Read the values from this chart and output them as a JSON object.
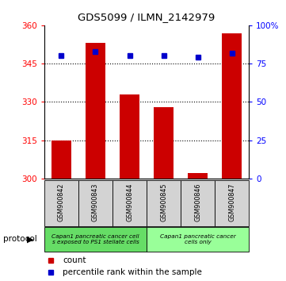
{
  "title": "GDS5099 / ILMN_2142979",
  "samples": [
    "GSM900842",
    "GSM900843",
    "GSM900844",
    "GSM900845",
    "GSM900846",
    "GSM900847"
  ],
  "bar_values": [
    315.0,
    353.0,
    333.0,
    328.0,
    302.0,
    357.0
  ],
  "bar_base": 300,
  "percentile_ranks": [
    80,
    83,
    80,
    80,
    79,
    82
  ],
  "ylim_left": [
    300,
    360
  ],
  "ylim_right": [
    0,
    100
  ],
  "yticks_left": [
    300,
    315,
    330,
    345,
    360
  ],
  "yticks_right": [
    0,
    25,
    50,
    75,
    100
  ],
  "bar_color": "#cc0000",
  "dot_color": "#0000cc",
  "protocol_groups": [
    {
      "label": "Capan1 pancreatic cancer cell\ns exposed to PS1 stellate cells",
      "color": "#66dd66",
      "start": 0,
      "end": 2
    },
    {
      "label": "Capan1 pancreatic cancer\ncells only",
      "color": "#99ff99",
      "start": 3,
      "end": 5
    }
  ],
  "legend_count_color": "#cc0000",
  "legend_dot_color": "#0000cc",
  "legend_count_label": "count",
  "legend_rank_label": "percentile rank within the sample",
  "protocol_label": "protocol",
  "figsize": [
    3.61,
    3.54
  ],
  "dpi": 100
}
